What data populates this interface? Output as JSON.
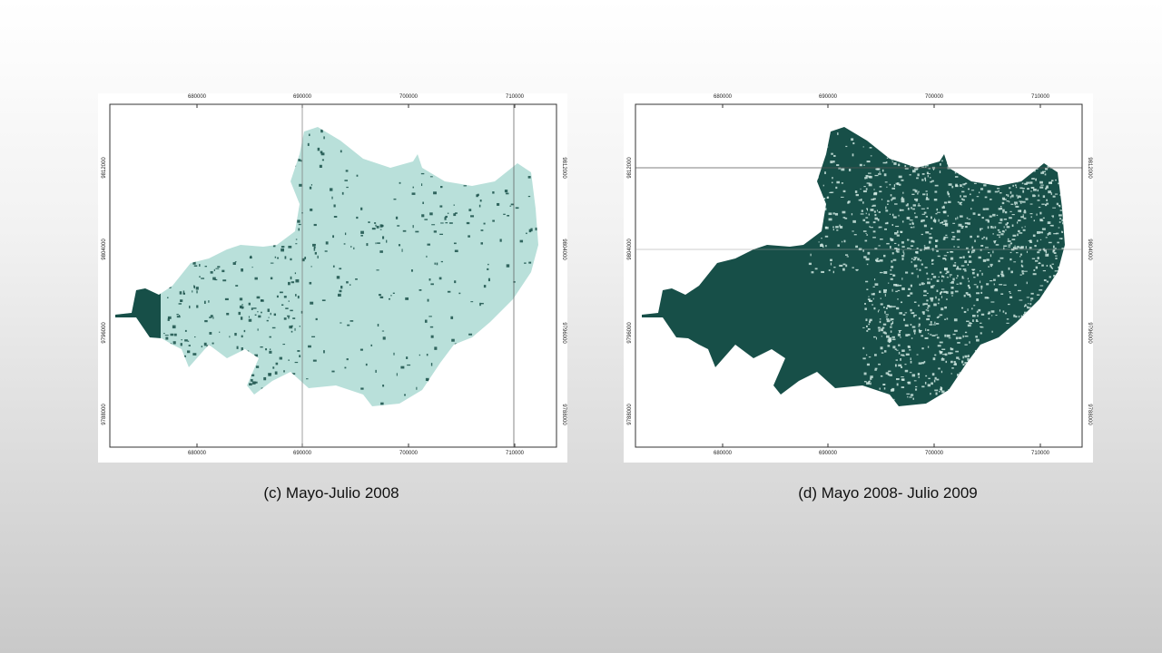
{
  "panels": [
    {
      "caption": "(c) Mayo-Julio 2008",
      "x_ticks": [
        "680000",
        "690000",
        "700000",
        "710000"
      ],
      "y_ticks": [
        "9812000",
        "9804000",
        "9796000",
        "9788000"
      ]
    },
    {
      "caption": "(d) Mayo 2008- Julio 2009",
      "x_ticks": [
        "680000",
        "690000",
        "700000",
        "710000"
      ],
      "y_ticks": [
        "9812000",
        "9804000",
        "9796000",
        "9788000"
      ]
    }
  ]
}
